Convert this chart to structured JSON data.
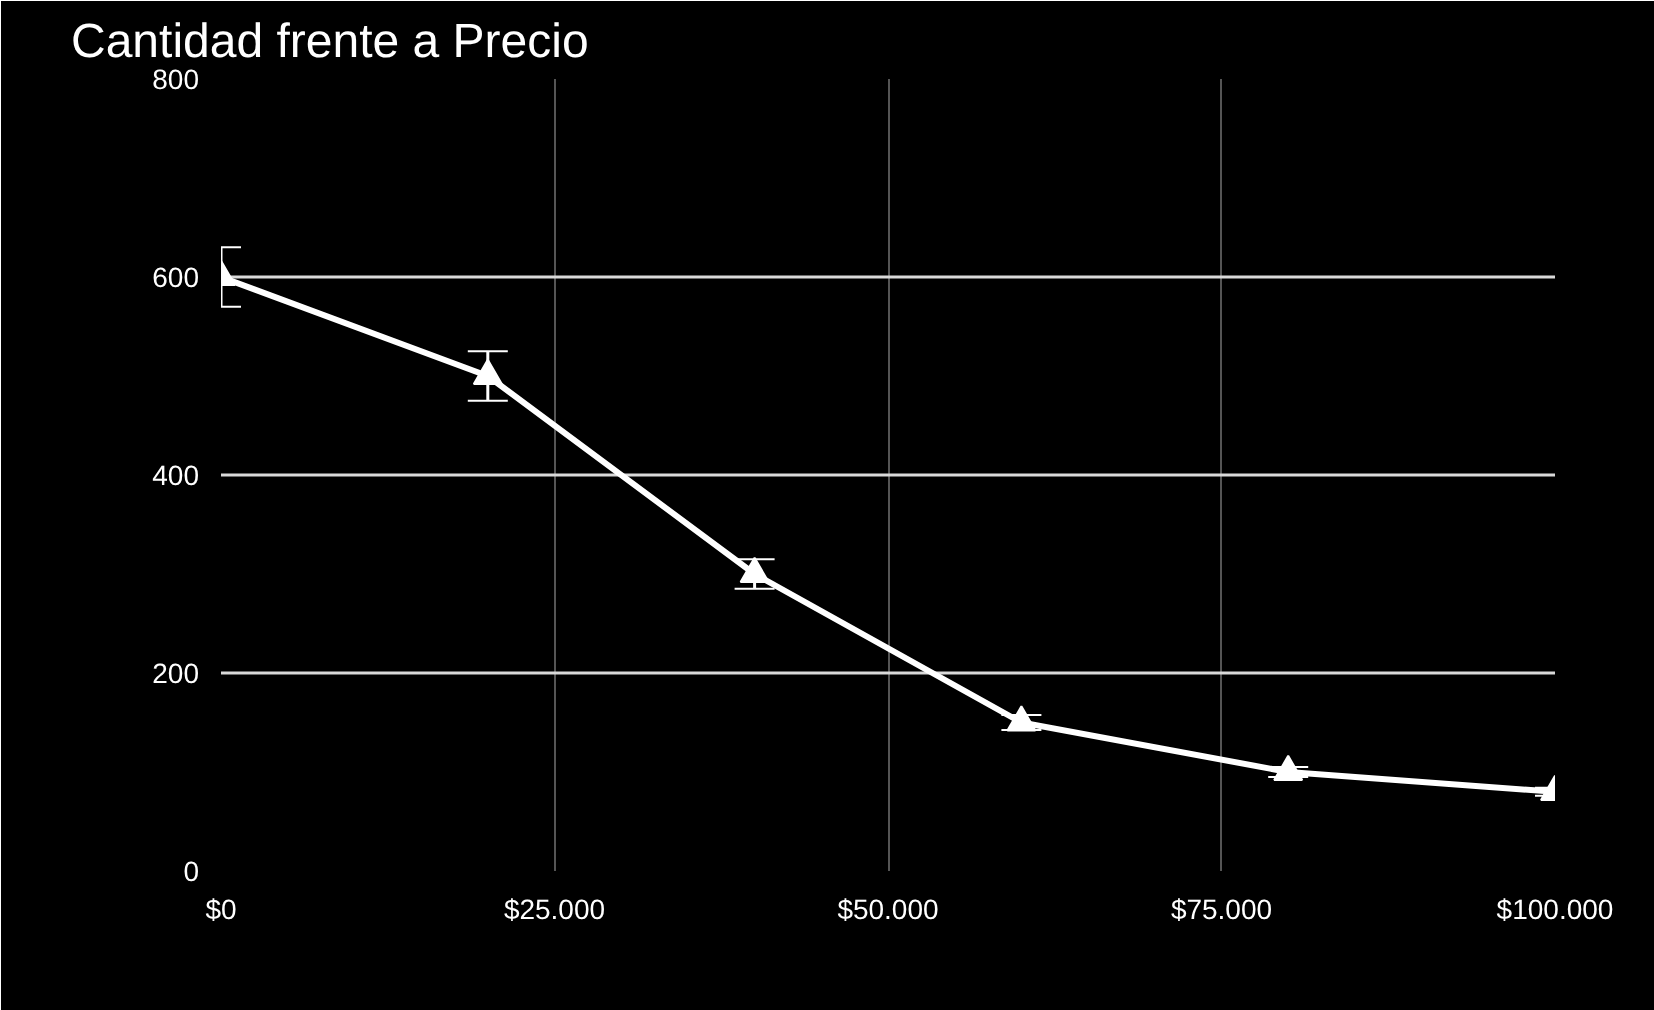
{
  "chart_data": {
    "type": "line",
    "title": "Cantidad frente a Precio",
    "x": [
      0,
      20000,
      40000,
      60000,
      80000,
      100000
    ],
    "series": [
      {
        "color": "#ffffff",
        "values": [
          600,
          500,
          300,
          150,
          100,
          80
        ],
        "errors": [
          30,
          25,
          15,
          7.5,
          5,
          4
        ]
      }
    ],
    "xlim": [
      0,
      100000
    ],
    "ylim": [
      0,
      800
    ],
    "xticks": [
      {
        "value": 0,
        "label": "$0"
      },
      {
        "value": 25000,
        "label": "$25.000"
      },
      {
        "value": 50000,
        "label": "$50.000"
      },
      {
        "value": 75000,
        "label": "$75.000"
      },
      {
        "value": 100000,
        "label": "$100.000"
      }
    ],
    "yticks": [
      0,
      200,
      400,
      600,
      800
    ],
    "grid": true,
    "marker": "triangle",
    "line_style": "solid"
  }
}
